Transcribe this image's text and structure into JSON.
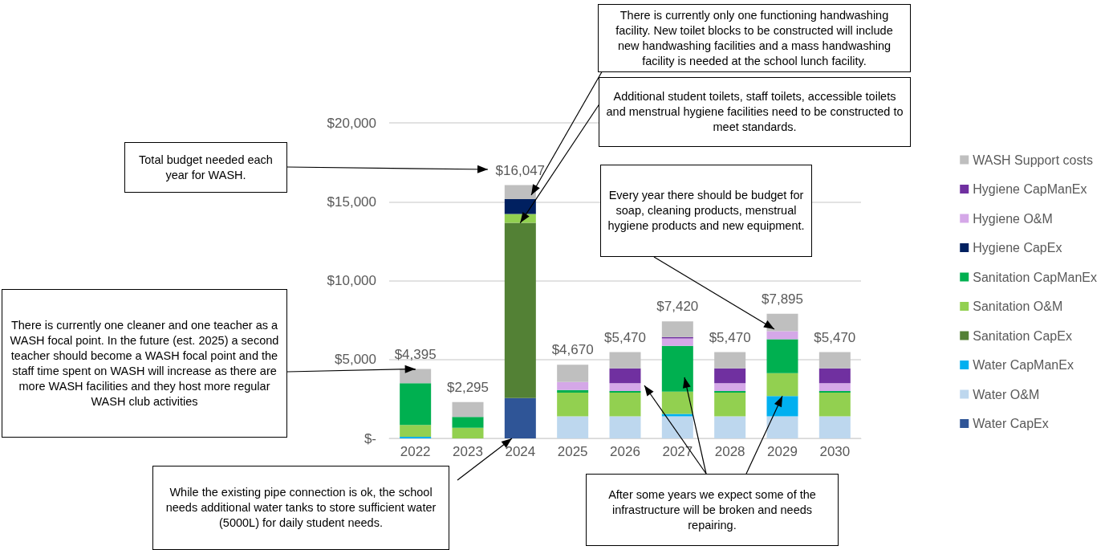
{
  "chart_data": {
    "type": "bar",
    "stacked": true,
    "categories": [
      "2022",
      "2023",
      "2024",
      "2025",
      "2026",
      "2027",
      "2028",
      "2029",
      "2030"
    ],
    "series": [
      {
        "name": "Water CapEx",
        "color": "#2f5597",
        "values": [
          0,
          0,
          2560,
          0,
          0,
          0,
          0,
          0,
          0
        ]
      },
      {
        "name": "Water O&M",
        "color": "#bdd7ee",
        "values": [
          0,
          0,
          0,
          1400,
          1400,
          1400,
          1400,
          1400,
          1400
        ]
      },
      {
        "name": "Water CapManEx",
        "color": "#00b0f0",
        "values": [
          100,
          0,
          0,
          0,
          0,
          150,
          0,
          1280,
          0
        ]
      },
      {
        "name": "Sanitation CapEx",
        "color": "#538135",
        "values": [
          0,
          0,
          11100,
          0,
          0,
          0,
          0,
          0,
          0
        ]
      },
      {
        "name": "Sanitation O&M",
        "color": "#92d050",
        "values": [
          750,
          680,
          560,
          1500,
          1500,
          1420,
          1500,
          1450,
          1500
        ]
      },
      {
        "name": "Sanitation CapManEx",
        "color": "#00b050",
        "values": [
          2650,
          680,
          0,
          170,
          100,
          2900,
          100,
          2150,
          100
        ]
      },
      {
        "name": "Hygiene CapEx",
        "color": "#002060",
        "values": [
          0,
          0,
          940,
          0,
          0,
          0,
          0,
          0,
          0
        ]
      },
      {
        "name": "Hygiene O&M",
        "color": "#d5a8e8",
        "values": [
          0,
          0,
          0,
          510,
          500,
          460,
          500,
          510,
          500
        ]
      },
      {
        "name": "Hygiene CapManEx",
        "color": "#7030a0",
        "values": [
          0,
          0,
          0,
          0,
          940,
          100,
          940,
          0,
          940
        ]
      },
      {
        "name": "WASH Support costs",
        "color": "#bfbfbf",
        "values": [
          900,
          940,
          890,
          1090,
          1030,
          990,
          1030,
          1110,
          1030
        ]
      }
    ],
    "totals": [
      "$4,395",
      "$2,295",
      "$16,047",
      "$4,670",
      "$5,470",
      "$7,420",
      "$5,470",
      "$7,895",
      "$5,470"
    ],
    "ylim": [
      0,
      20000
    ],
    "yticks": [
      {
        "value": 0,
        "label": "$-"
      },
      {
        "value": 5000,
        "label": "$5,000"
      },
      {
        "value": 10000,
        "label": "$10,000"
      },
      {
        "value": 15000,
        "label": "$15,000"
      },
      {
        "value": 20000,
        "label": "$20,000"
      }
    ],
    "grid": "y",
    "legend": "right",
    "annotations": [
      "Total budget needed each year for WASH.",
      "There is currently only one functioning handwashing facility. New toilet blocks to be constructed will include new handwashing facilities and a mass handwashing facility is needed at the school lunch facility.",
      {
        "text": "Additional student toilets, staff toilets, accessible toilets and menstrual hygiene facilities need to be constructed to meet standards.",
        "x": "2024",
        "y": 13660
      },
      "Every year there should be budget for soap, cleaning products, menstrual hygiene products and new equipment.",
      {
        "text": "There is currently one cleaner and one teacher as a WASH focal point. In the future (est. 2025) a second teacher should become a WASH focal point and the staff time spent on WASH will increase as there are more WASH facilities and they host more regular WASH club activities",
        "x": "2022",
        "y": 4400
      },
      "While the existing pipe connection is ok, the school needs additional water tanks to store sufficient water (5000L) for daily student needs.",
      {
        "text": "After some years we expect some of the infrastructure will be broken and needs repairing.",
        "x": "2029",
        "y": 2680
      }
    ]
  }
}
